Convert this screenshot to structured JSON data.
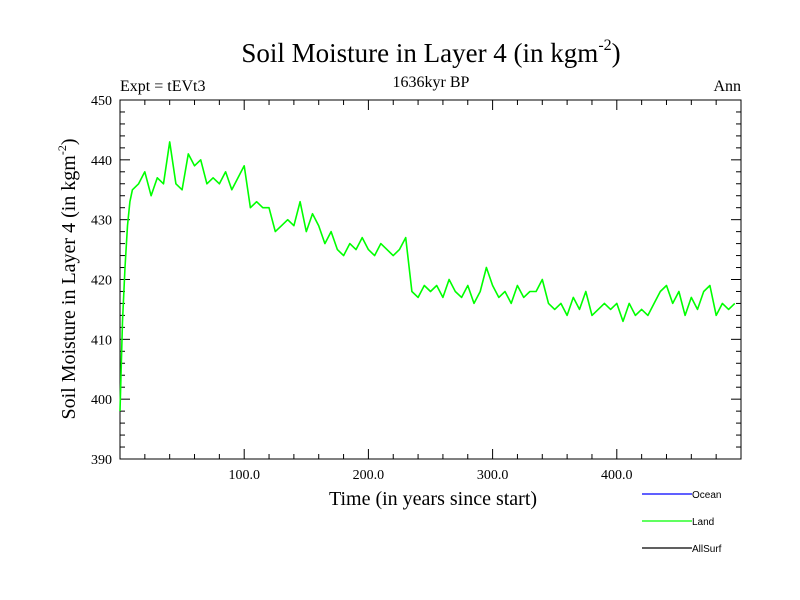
{
  "chart_data": {
    "type": "line",
    "title": "Soil Moisture in Layer 4 (in kgm",
    "title_sup": "-2",
    "title_close": ")",
    "subtitle_left": "Expt = tEVt3",
    "subtitle_center": "1636kyr BP",
    "subtitle_right": "Ann",
    "xlabel": "Time (in years since start)",
    "ylabel": "Soil Moisture in Layer 4 (in kgm",
    "ylabel_sup": "-2",
    "ylabel_close": ")",
    "xlim": [
      0,
      500
    ],
    "ylim": [
      390,
      450
    ],
    "x_tick_labels": [
      "100.0",
      "200.0",
      "300.0",
      "400.0"
    ],
    "x_tick_values": [
      100,
      200,
      300,
      400
    ],
    "y_tick_labels": [
      "390",
      "400",
      "410",
      "420",
      "430",
      "440",
      "450"
    ],
    "y_tick_values": [
      390,
      400,
      410,
      420,
      430,
      440,
      450
    ],
    "legend": [
      {
        "name": "Ocean",
        "color": "#0000ff"
      },
      {
        "name": "Land",
        "color": "#00ff00"
      },
      {
        "name": "AllSurf",
        "color": "#000000"
      }
    ],
    "series": [
      {
        "name": "Land",
        "color": "#00ff00",
        "x": [
          0,
          2,
          4,
          6,
          8,
          10,
          15,
          20,
          25,
          30,
          35,
          40,
          45,
          50,
          55,
          60,
          65,
          70,
          75,
          80,
          85,
          90,
          95,
          100,
          105,
          110,
          115,
          120,
          125,
          130,
          135,
          140,
          145,
          150,
          155,
          160,
          165,
          170,
          175,
          180,
          185,
          190,
          195,
          200,
          205,
          210,
          215,
          220,
          225,
          230,
          235,
          240,
          245,
          250,
          255,
          260,
          265,
          270,
          275,
          280,
          285,
          290,
          295,
          300,
          305,
          310,
          315,
          320,
          325,
          330,
          335,
          340,
          345,
          350,
          355,
          360,
          365,
          370,
          375,
          380,
          385,
          390,
          395,
          400,
          405,
          410,
          415,
          420,
          425,
          430,
          435,
          440,
          445,
          450,
          455,
          460,
          465,
          470,
          475,
          480,
          485,
          490,
          495
        ],
        "values": [
          398,
          413,
          422,
          429,
          433,
          435,
          436,
          438,
          434,
          437,
          436,
          443,
          436,
          435,
          441,
          439,
          440,
          436,
          437,
          436,
          438,
          435,
          437,
          439,
          432,
          433,
          432,
          432,
          428,
          429,
          430,
          429,
          433,
          428,
          431,
          429,
          426,
          428,
          425,
          424,
          426,
          425,
          427,
          425,
          424,
          426,
          425,
          424,
          425,
          427,
          418,
          417,
          419,
          418,
          419,
          417,
          420,
          418,
          417,
          419,
          416,
          418,
          422,
          419,
          417,
          418,
          416,
          419,
          417,
          418,
          418,
          420,
          416,
          415,
          416,
          414,
          417,
          415,
          418,
          414,
          415,
          416,
          415,
          416,
          413,
          416,
          414,
          415,
          414,
          416,
          418,
          419,
          416,
          418,
          414,
          417,
          415,
          418,
          419,
          414,
          416,
          415,
          416
        ]
      }
    ]
  }
}
